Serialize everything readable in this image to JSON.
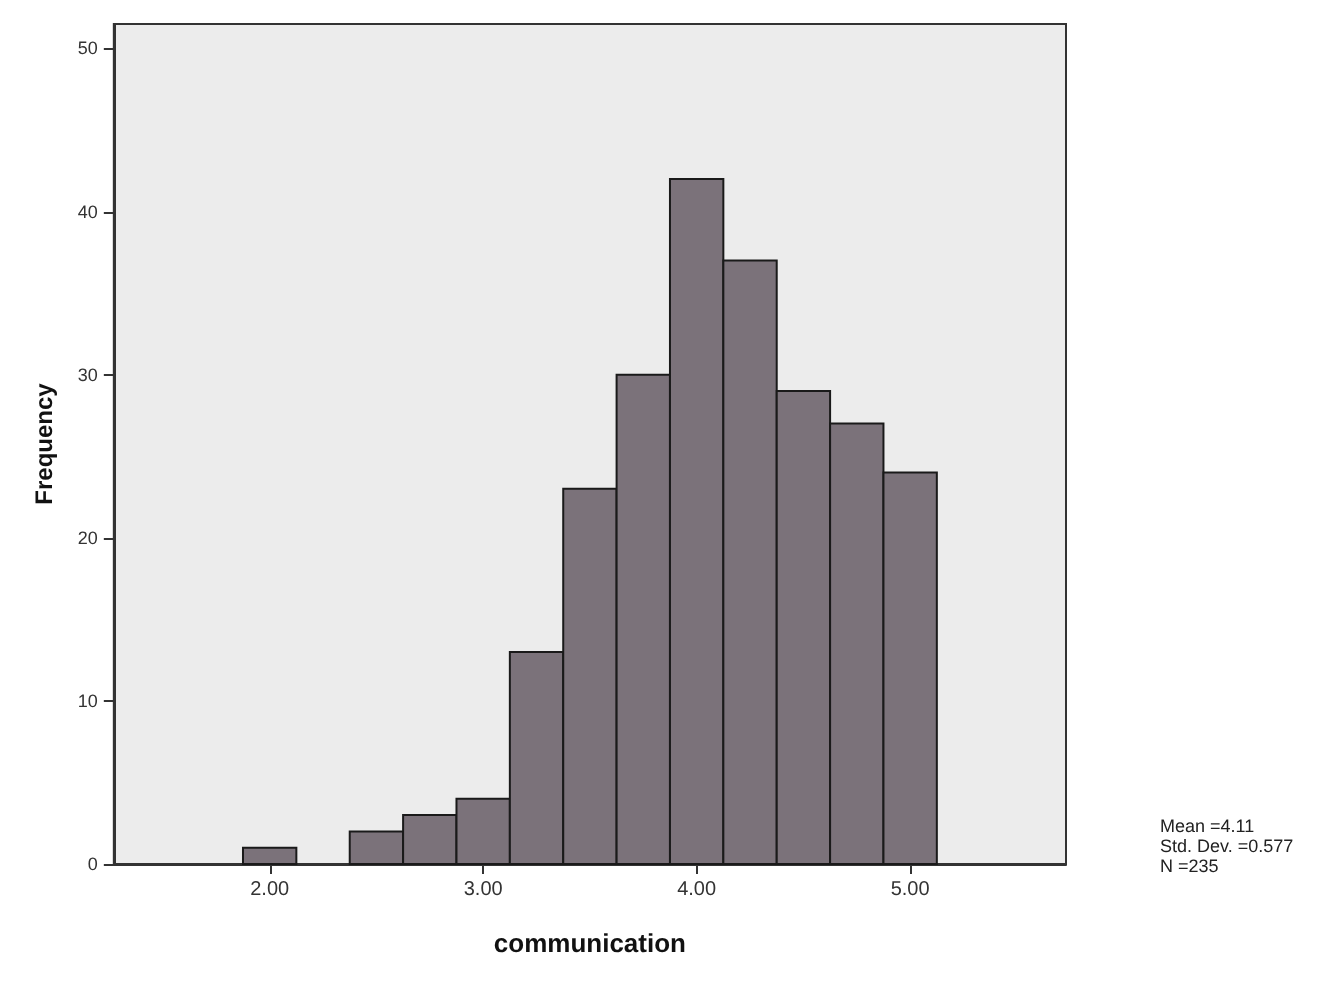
{
  "chart_data": {
    "type": "histogram",
    "xlabel": "communication",
    "ylabel": "Frequency",
    "bins": [
      1.875,
      2.125,
      2.375,
      2.625,
      2.875,
      3.125,
      3.375,
      3.625,
      3.875,
      4.125,
      4.375,
      4.625,
      4.875,
      5.125
    ],
    "values": [
      1,
      0,
      2,
      3,
      4,
      13,
      23,
      30,
      42,
      37,
      29,
      27,
      24
    ],
    "color": "#7b727a",
    "xlim": [
      1.27,
      5.73
    ],
    "xticks": [
      {
        "value": 2,
        "label": "2.00"
      },
      {
        "value": 3,
        "label": "3.00"
      },
      {
        "value": 4,
        "label": "4.00"
      },
      {
        "value": 5,
        "label": "5.00"
      }
    ],
    "ylim": [
      0,
      51.5
    ],
    "yticks": [
      0,
      10,
      20,
      30,
      40,
      50
    ],
    "grid": false,
    "annotations": [
      "Mean =4.11",
      "Std. Dev. =0.577",
      "N =235"
    ]
  }
}
